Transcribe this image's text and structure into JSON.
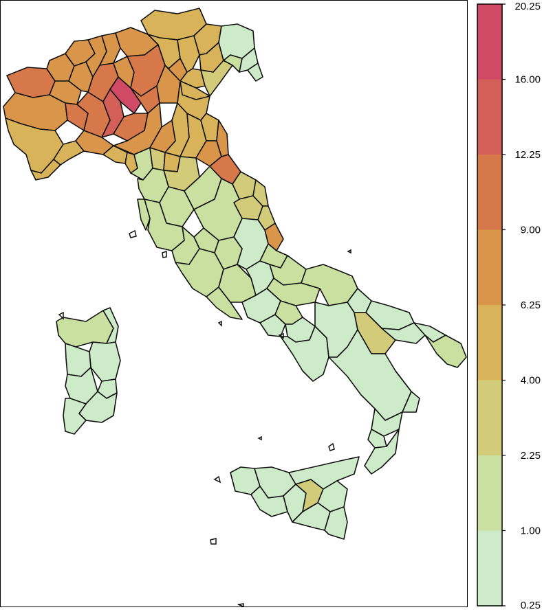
{
  "legend": {
    "breaks": [
      "0.25",
      "1.00",
      "2.25",
      "4.00",
      "6.25",
      "9.00",
      "12.25",
      "16.00",
      "20.25"
    ],
    "colors": [
      "#cdebc8",
      "#c9e0a0",
      "#d2cc7a",
      "#d8b35a",
      "#d9964a",
      "#d7784a",
      "#d45f58",
      "#d04a66"
    ]
  },
  "map": {
    "subject": "Italy provinces choropleth",
    "classes": {
      "c0": "#cdebc8",
      "c1": "#c9e0a0",
      "c2": "#d2cc7a",
      "c3": "#d8b35a",
      "c4": "#d9964a",
      "c5": "#d7784a",
      "c6": "#d45f58",
      "c7": "#d04a66"
    }
  }
}
